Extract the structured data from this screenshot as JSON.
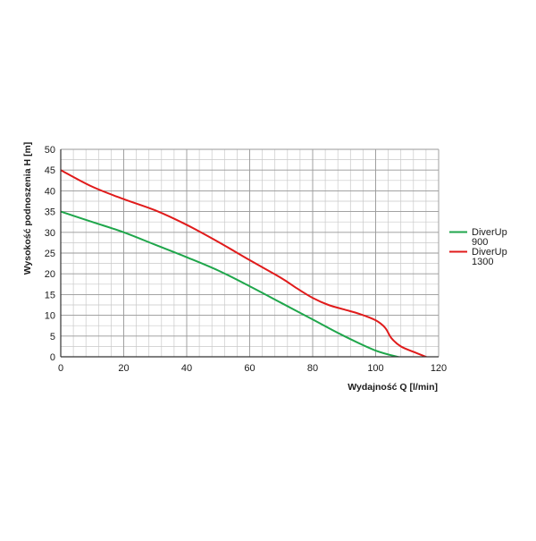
{
  "chart_data": {
    "type": "line",
    "xlabel": "Wydajność Q [l/min]",
    "ylabel": "Wysokość podnoszenia H [m]",
    "xlim": [
      0,
      120
    ],
    "ylim": [
      0,
      50
    ],
    "xticks": [
      0,
      20,
      40,
      60,
      80,
      100,
      120
    ],
    "yticks": [
      0,
      5,
      10,
      15,
      20,
      25,
      30,
      35,
      40,
      45,
      50
    ],
    "grid": true,
    "grid_minor_x_step": 4,
    "grid_minor_y_step": 2.5,
    "legend_position": "right",
    "series": [
      {
        "name_lines": [
          "DiverUp",
          "900"
        ],
        "color": "#1fa64b",
        "points": [
          [
            0,
            35
          ],
          [
            10,
            32.5
          ],
          [
            20,
            30
          ],
          [
            30,
            27
          ],
          [
            40,
            24
          ],
          [
            50,
            20.8
          ],
          [
            60,
            17
          ],
          [
            70,
            13
          ],
          [
            80,
            9
          ],
          [
            90,
            5
          ],
          [
            100,
            1.5
          ],
          [
            108,
            -0.2
          ]
        ]
      },
      {
        "name_lines": [
          "DiverUp",
          "1300"
        ],
        "color": "#e01b1b",
        "points": [
          [
            0,
            45
          ],
          [
            10,
            41
          ],
          [
            20,
            38
          ],
          [
            30,
            35.3
          ],
          [
            40,
            31.8
          ],
          [
            50,
            27.7
          ],
          [
            60,
            23.3
          ],
          [
            70,
            19
          ],
          [
            75,
            16.5
          ],
          [
            80,
            14.2
          ],
          [
            85,
            12.5
          ],
          [
            90,
            11.4
          ],
          [
            95,
            10.3
          ],
          [
            100,
            8.8
          ],
          [
            103,
            7
          ],
          [
            105,
            4.5
          ],
          [
            108,
            2.5
          ],
          [
            112,
            1.2
          ],
          [
            116,
            0
          ]
        ]
      }
    ]
  }
}
